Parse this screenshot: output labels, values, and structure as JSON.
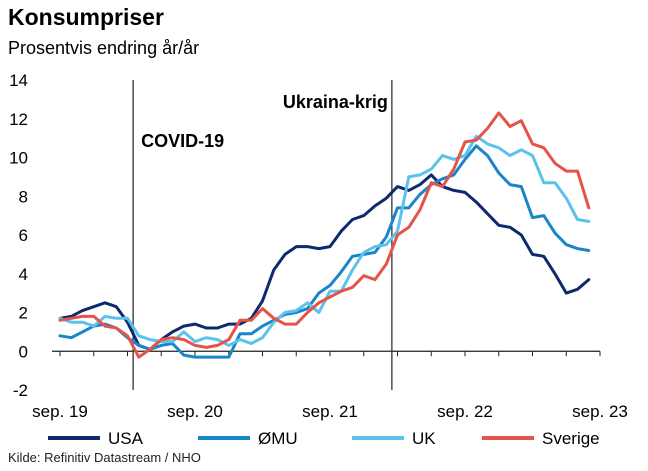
{
  "header": {
    "title": "Konsumpriser",
    "subtitle": "Prosentvis endring år/år"
  },
  "footer": {
    "source": "Kilde: Refinitiv Datastream / NHO"
  },
  "chart_data": {
    "type": "line",
    "title": "Konsumpriser",
    "subtitle": "Prosentvis endring år/år",
    "xlabel": "",
    "ylabel": "",
    "ylim": [
      -2,
      14
    ],
    "yticks": [
      -2,
      0,
      2,
      4,
      6,
      8,
      10,
      12,
      14
    ],
    "x_ticks": [
      {
        "index": 0,
        "label": "sep. 19"
      },
      {
        "index": 12,
        "label": "sep. 20"
      },
      {
        "index": 24,
        "label": "sep. 21"
      },
      {
        "index": 36,
        "label": "sep. 22"
      },
      {
        "index": 48,
        "label": "sep. 23"
      }
    ],
    "grid": false,
    "legend": "bottom",
    "vlines": [
      {
        "index": 6.5,
        "label": "COVID-19"
      },
      {
        "index": 29.5,
        "label": "Ukraina-krig"
      }
    ],
    "series": [
      {
        "name": "USA",
        "color": "#0d2a6e",
        "values": [
          1.7,
          1.8,
          2.1,
          2.3,
          2.5,
          2.3,
          1.5,
          0.3,
          0.1,
          0.6,
          1.0,
          1.3,
          1.4,
          1.2,
          1.2,
          1.4,
          1.4,
          1.7,
          2.6,
          4.2,
          5.0,
          5.4,
          5.4,
          5.3,
          5.4,
          6.2,
          6.8,
          7.0,
          7.5,
          7.9,
          8.5,
          8.3,
          8.6,
          9.1,
          8.5,
          8.3,
          8.2,
          7.7,
          7.1,
          6.5,
          6.4,
          6.0,
          5.0,
          4.9,
          4.0,
          3.0,
          3.2,
          3.7
        ]
      },
      {
        "name": "ØMU",
        "color": "#1a85c8",
        "values": [
          0.8,
          0.7,
          1.0,
          1.3,
          1.4,
          1.2,
          0.7,
          0.3,
          0.1,
          0.3,
          0.4,
          -0.2,
          -0.3,
          -0.3,
          -0.3,
          -0.3,
          0.9,
          0.9,
          1.3,
          1.6,
          1.9,
          2.0,
          2.2,
          3.0,
          3.4,
          4.1,
          4.9,
          5.0,
          5.1,
          5.9,
          7.4,
          7.4,
          8.1,
          8.6,
          8.9,
          9.1,
          9.9,
          10.6,
          10.1,
          9.2,
          8.6,
          8.5,
          6.9,
          7.0,
          6.1,
          5.5,
          5.3,
          5.2
        ]
      },
      {
        "name": "UK",
        "color": "#5bc2ec",
        "values": [
          1.7,
          1.5,
          1.5,
          1.3,
          1.8,
          1.7,
          1.7,
          0.8,
          0.6,
          0.5,
          0.5,
          1.0,
          0.5,
          0.7,
          0.6,
          0.3,
          0.6,
          0.4,
          0.7,
          1.5,
          2.0,
          2.1,
          2.5,
          2.0,
          3.1,
          3.1,
          4.2,
          5.1,
          5.4,
          5.5,
          6.2,
          9.0,
          9.1,
          9.4,
          10.1,
          9.9,
          10.1,
          11.1,
          10.7,
          10.5,
          10.1,
          10.4,
          10.1,
          8.7,
          8.7,
          7.9,
          6.8,
          6.7
        ]
      },
      {
        "name": "Sverige",
        "color": "#e5534b",
        "values": [
          1.6,
          1.7,
          1.8,
          1.8,
          1.3,
          1.2,
          0.8,
          -0.3,
          0.1,
          0.6,
          0.7,
          0.6,
          0.3,
          0.2,
          0.3,
          0.6,
          1.6,
          1.6,
          2.2,
          1.7,
          1.4,
          1.4,
          2.0,
          2.5,
          2.8,
          3.1,
          3.3,
          3.9,
          3.7,
          4.5,
          6.0,
          6.4,
          7.3,
          8.7,
          8.5,
          9.4,
          10.8,
          10.9,
          11.5,
          12.3,
          11.6,
          11.9,
          10.7,
          10.5,
          9.7,
          9.3,
          9.3,
          7.4
        ]
      }
    ]
  }
}
